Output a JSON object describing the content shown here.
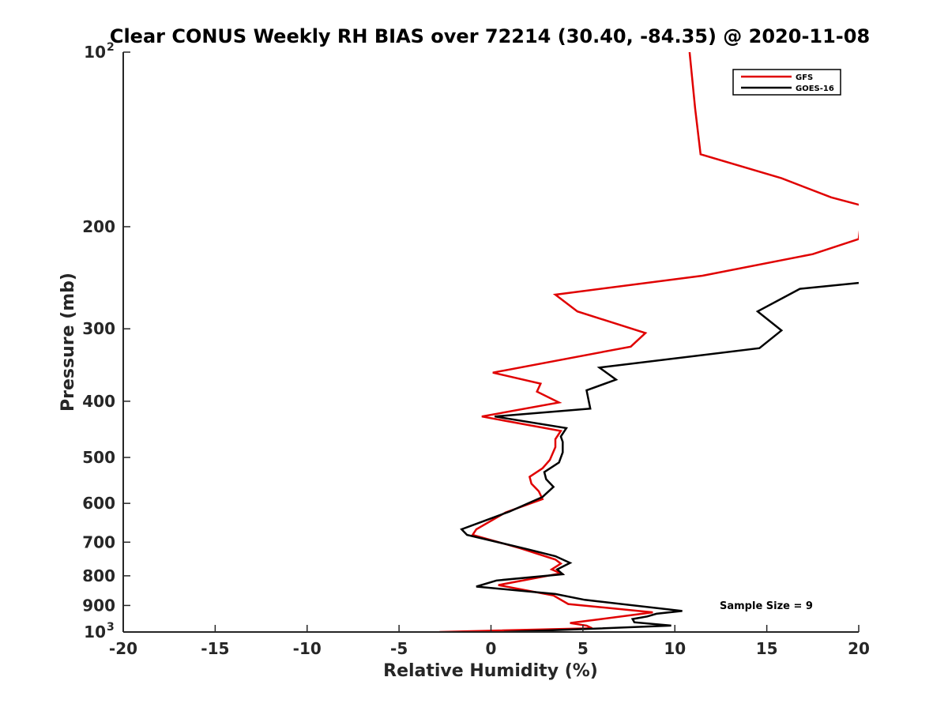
{
  "chart_data": {
    "type": "line",
    "title": "Clear CONUS Weekly RH BIAS over 72214 (30.40, -84.35) @ 2020-11-08",
    "xlabel": "Relative Humidity (%)",
    "ylabel": "Pressure (mb)",
    "xlim": [
      -20,
      20
    ],
    "ylim": [
      100,
      1000
    ],
    "y_scale": "log",
    "y_reversed": true,
    "legend_placement": "top-right",
    "grid": false,
    "x_ticks": [
      -20,
      -15,
      -10,
      -5,
      0,
      5,
      10,
      15,
      20
    ],
    "x_tick_labels": [
      "-20",
      "-15",
      "-10",
      "-5",
      "0",
      "5",
      "10",
      "15",
      "20"
    ],
    "y_ticks": [
      {
        "value": 100,
        "base": "10",
        "exp": "2"
      },
      {
        "value": 200,
        "base": "200",
        "exp": ""
      },
      {
        "value": 300,
        "base": "300",
        "exp": ""
      },
      {
        "value": 400,
        "base": "400",
        "exp": ""
      },
      {
        "value": 500,
        "base": "500",
        "exp": ""
      },
      {
        "value": 600,
        "base": "600",
        "exp": ""
      },
      {
        "value": 700,
        "base": "700",
        "exp": ""
      },
      {
        "value": 800,
        "base": "800",
        "exp": ""
      },
      {
        "value": 900,
        "base": "900",
        "exp": ""
      },
      {
        "value": 1000,
        "base": "10",
        "exp": "3"
      }
    ],
    "annotation": "Sample Size = 9",
    "series": [
      {
        "name": "GFS",
        "color": "#e00000",
        "points": [
          [
            10.8,
            100
          ],
          [
            11.1,
            125
          ],
          [
            11.4,
            150
          ],
          [
            15.8,
            165
          ],
          [
            18.5,
            178
          ],
          [
            20.2,
            184
          ],
          [
            20.0,
            210
          ],
          [
            17.5,
            223
          ],
          [
            11.5,
            243
          ],
          [
            3.5,
            262
          ],
          [
            4.7,
            280
          ],
          [
            8.4,
            305
          ],
          [
            7.6,
            322
          ],
          [
            0.1,
            357
          ],
          [
            2.7,
            373
          ],
          [
            2.5,
            385
          ],
          [
            3.7,
            402
          ],
          [
            -0.5,
            425
          ],
          [
            3.8,
            450
          ],
          [
            3.5,
            465
          ],
          [
            3.5,
            480
          ],
          [
            3.2,
            505
          ],
          [
            2.8,
            522
          ],
          [
            2.1,
            540
          ],
          [
            2.2,
            555
          ],
          [
            2.6,
            572
          ],
          [
            2.8,
            590
          ],
          [
            0.8,
            622
          ],
          [
            -0.8,
            665
          ],
          [
            -1.0,
            680
          ],
          [
            1.6,
            717
          ],
          [
            3.5,
            750
          ],
          [
            3.8,
            762
          ],
          [
            3.3,
            780
          ],
          [
            3.8,
            792
          ],
          [
            0.4,
            830
          ],
          [
            3.4,
            865
          ],
          [
            4.2,
            895
          ],
          [
            8.8,
            925
          ],
          [
            6.0,
            950
          ],
          [
            4.3,
            965
          ],
          [
            5.2,
            975
          ],
          [
            5.5,
            985
          ],
          [
            -2.8,
            1000
          ]
        ]
      },
      {
        "name": "GOES-16",
        "color": "#000000",
        "points": [
          [
            20.0,
            250
          ],
          [
            16.8,
            256
          ],
          [
            14.5,
            280
          ],
          [
            15.8,
            302
          ],
          [
            14.6,
            324
          ],
          [
            5.9,
            350
          ],
          [
            6.8,
            367
          ],
          [
            5.2,
            383
          ],
          [
            5.4,
            412
          ],
          [
            0.2,
            425
          ],
          [
            4.1,
            445
          ],
          [
            3.8,
            460
          ],
          [
            3.9,
            470
          ],
          [
            3.9,
            490
          ],
          [
            3.7,
            510
          ],
          [
            2.9,
            530
          ],
          [
            3.0,
            545
          ],
          [
            3.4,
            562
          ],
          [
            2.8,
            585
          ],
          [
            1.0,
            620
          ],
          [
            -1.6,
            665
          ],
          [
            -1.3,
            680
          ],
          [
            2.0,
            720
          ],
          [
            3.5,
            740
          ],
          [
            4.3,
            760
          ],
          [
            3.6,
            780
          ],
          [
            3.9,
            795
          ],
          [
            0.3,
            815
          ],
          [
            -0.8,
            835
          ],
          [
            3.5,
            860
          ],
          [
            5.1,
            880
          ],
          [
            10.4,
            920
          ],
          [
            9.0,
            930
          ],
          [
            8.5,
            940
          ],
          [
            7.7,
            950
          ],
          [
            7.8,
            962
          ],
          [
            9.8,
            975
          ],
          [
            4.5,
            990
          ],
          [
            0.7,
            1000
          ]
        ]
      }
    ]
  }
}
